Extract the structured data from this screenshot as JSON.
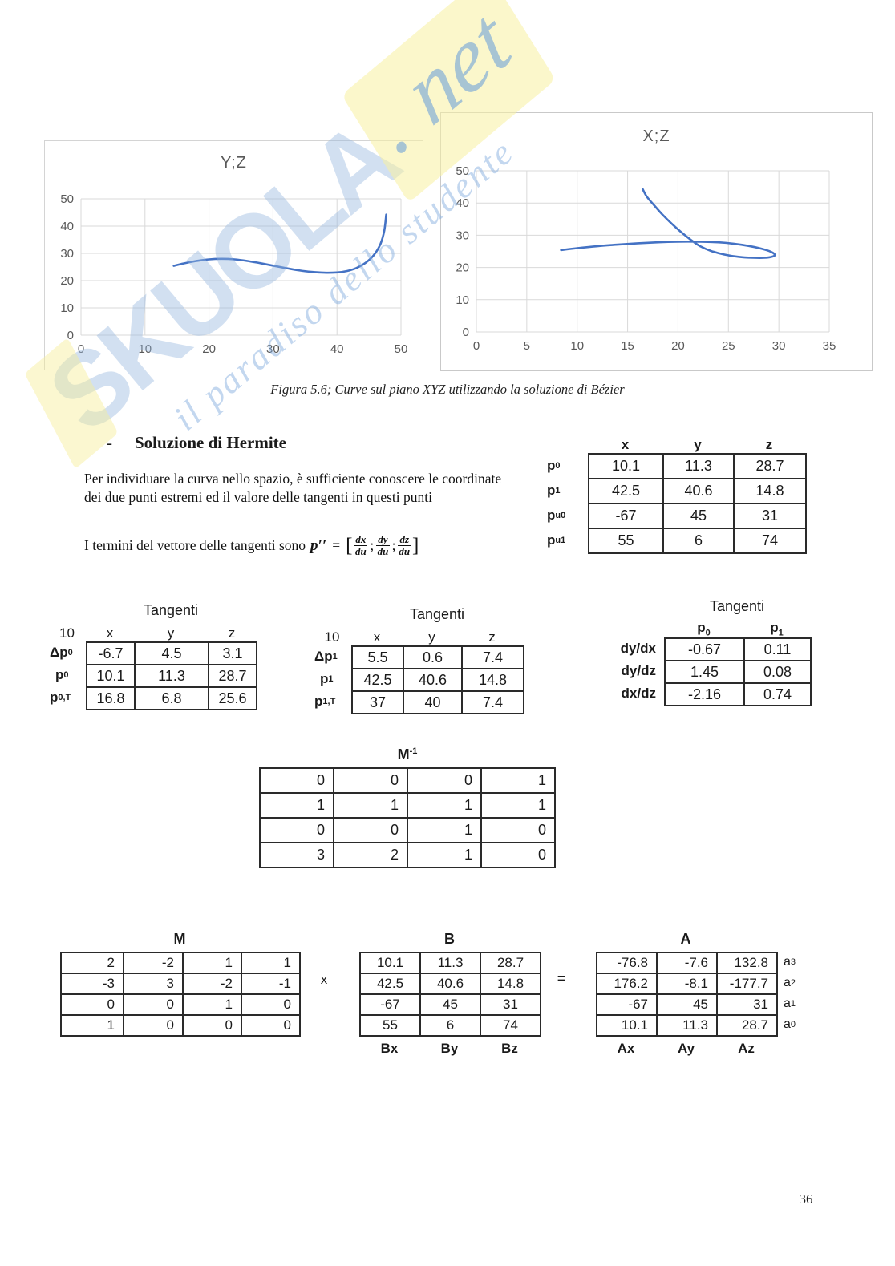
{
  "watermark": {
    "brand": "SKUOLA",
    "tld": ". net",
    "tagline": "il paradiso dello studente"
  },
  "caption": "Figura 5.6; Curve sul piano XYZ utilizzando la soluzione di Bézier",
  "page_number": "36",
  "section": {
    "bullet": "-",
    "title": "Soluzione di Hermite",
    "paragraph": "Per individuare la curva nello spazio, è sufficiente conoscere le coordinate dei due punti estremi ed il valore delle tangenti in questi punti",
    "formula_intro": "I termini del vettore delle tangenti sono",
    "formula": {
      "p": "p",
      "primes": "′′",
      "equals": "=",
      "open": "[",
      "close": "]",
      "sep": ";",
      "fracs": [
        {
          "num": "dx",
          "den": "du"
        },
        {
          "num": "dy",
          "den": "du"
        },
        {
          "num": "dz",
          "den": "du"
        }
      ]
    }
  },
  "chart_data": [
    {
      "type": "line",
      "title": "Y;Z",
      "xlabel": "",
      "ylabel": "",
      "xlim": [
        0,
        50
      ],
      "ylim": [
        0,
        50
      ],
      "x_ticks": [
        0,
        10,
        20,
        30,
        40,
        50
      ],
      "y_ticks": [
        0,
        10,
        20,
        30,
        40,
        50
      ],
      "grid": true,
      "legend": false,
      "line_color": "#4472C4",
      "points": [
        [
          14.5,
          25.4
        ],
        [
          16,
          26.3
        ],
        [
          18,
          27.2
        ],
        [
          20,
          27.8
        ],
        [
          22,
          28.0
        ],
        [
          24,
          27.8
        ],
        [
          26,
          27.2
        ],
        [
          28,
          26.4
        ],
        [
          30,
          25.5
        ],
        [
          32,
          24.6
        ],
        [
          34,
          23.8
        ],
        [
          36,
          23.2
        ],
        [
          38,
          22.9
        ],
        [
          40,
          23.0
        ],
        [
          41.5,
          23.5
        ],
        [
          43,
          24.6
        ],
        [
          44.5,
          26.6
        ],
        [
          45.8,
          29.5
        ],
        [
          46.8,
          33.5
        ],
        [
          47.4,
          38.5
        ],
        [
          47.7,
          44.2
        ]
      ]
    },
    {
      "type": "line",
      "title": "X;Z",
      "xlabel": "",
      "ylabel": "",
      "xlim": [
        0,
        35
      ],
      "ylim": [
        0,
        50
      ],
      "x_ticks": [
        0,
        5,
        10,
        15,
        20,
        25,
        30,
        35
      ],
      "y_ticks": [
        0,
        10,
        20,
        30,
        40,
        50
      ],
      "grid": true,
      "legend": false,
      "line_color": "#4472C4",
      "points": [
        [
          8.4,
          25.4
        ],
        [
          10,
          26.0
        ],
        [
          12,
          26.6
        ],
        [
          14,
          27.1
        ],
        [
          16,
          27.5
        ],
        [
          18,
          27.8
        ],
        [
          20,
          28.0
        ],
        [
          22,
          28.0
        ],
        [
          24,
          27.8
        ],
        [
          25.5,
          27.4
        ],
        [
          27,
          26.7
        ],
        [
          28.3,
          25.8
        ],
        [
          29.2,
          24.9
        ],
        [
          29.6,
          24.0
        ],
        [
          29.4,
          23.4
        ],
        [
          28.6,
          23.0
        ],
        [
          27.4,
          23.0
        ],
        [
          26,
          23.3
        ],
        [
          24.6,
          24.0
        ],
        [
          23.3,
          25.1
        ],
        [
          22.2,
          26.6
        ],
        [
          21.3,
          28.5
        ],
        [
          20.3,
          31.0
        ],
        [
          19.3,
          33.8
        ],
        [
          18.4,
          36.6
        ],
        [
          17.6,
          39.4
        ],
        [
          16.9,
          42.0
        ],
        [
          16.5,
          44.3
        ]
      ]
    }
  ],
  "hermite_table": {
    "headers": [
      "x",
      "y",
      "z"
    ],
    "row_labels": [
      {
        "base": "p",
        "sup": "",
        "sub": "0"
      },
      {
        "base": "p",
        "sup": "",
        "sub": "1"
      },
      {
        "base": "p",
        "sup": "u",
        "sub": "0"
      },
      {
        "base": "p",
        "sup": "u",
        "sub": "1"
      }
    ],
    "rows": [
      [
        "10.1",
        "11.3",
        "28.7"
      ],
      [
        "42.5",
        "40.6",
        "14.8"
      ],
      [
        "-67",
        "45",
        "31"
      ],
      [
        "55",
        "6",
        "74"
      ]
    ]
  },
  "tangenti1": {
    "title": "Tangenti",
    "corner": "10",
    "headers": [
      "x",
      "y",
      "z"
    ],
    "row_labels": [
      {
        "base": "Δp",
        "sub": "0"
      },
      {
        "base": "p",
        "sub": "0"
      },
      {
        "base": "p",
        "sub": "0,T"
      }
    ],
    "rows": [
      [
        "-6.7",
        "4.5",
        "3.1"
      ],
      [
        "10.1",
        "11.3",
        "28.7"
      ],
      [
        "16.8",
        "6.8",
        "25.6"
      ]
    ]
  },
  "tangenti2": {
    "title": "Tangenti",
    "corner": "10",
    "headers": [
      "x",
      "y",
      "z"
    ],
    "row_labels": [
      {
        "base": "Δp",
        "sub": "1"
      },
      {
        "base": "p",
        "sub": "1"
      },
      {
        "base": "p",
        "sub": "1,T"
      }
    ],
    "rows": [
      [
        "5.5",
        "0.6",
        "7.4"
      ],
      [
        "42.5",
        "40.6",
        "14.8"
      ],
      [
        "37",
        "40",
        "7.4"
      ]
    ]
  },
  "tangenti3": {
    "title": "Tangenti",
    "headers": [
      {
        "base": "p",
        "sub": "0"
      },
      {
        "base": "p",
        "sub": "1"
      }
    ],
    "row_labels": [
      "dy/dx",
      "dy/dz",
      "dx/dz"
    ],
    "rows": [
      [
        "-0.67",
        "0.11"
      ],
      [
        "1.45",
        "0.08"
      ],
      [
        "-2.16",
        "0.74"
      ]
    ]
  },
  "minv": {
    "title_base": "M",
    "title_sup": "-1",
    "rows": [
      [
        "0",
        "0",
        "0",
        "1"
      ],
      [
        "1",
        "1",
        "1",
        "1"
      ],
      [
        "0",
        "0",
        "1",
        "0"
      ],
      [
        "3",
        "2",
        "1",
        "0"
      ]
    ]
  },
  "m_matrix": {
    "title": "M",
    "rows": [
      [
        "2",
        "-2",
        "1",
        "1"
      ],
      [
        "-3",
        "3",
        "-2",
        "-1"
      ],
      [
        "0",
        "0",
        "1",
        "0"
      ],
      [
        "1",
        "0",
        "0",
        "0"
      ]
    ]
  },
  "times_sign": "x",
  "equals_sign": "=",
  "b_matrix": {
    "title": "B",
    "rows": [
      [
        "10.1",
        "11.3",
        "28.7"
      ],
      [
        "42.5",
        "40.6",
        "14.8"
      ],
      [
        "-67",
        "45",
        "31"
      ],
      [
        "55",
        "6",
        "74"
      ]
    ],
    "footers": [
      "Bx",
      "By",
      "Bz"
    ]
  },
  "a_matrix": {
    "title": "A",
    "rows": [
      [
        "-76.8",
        "-7.6",
        "132.8"
      ],
      [
        "176.2",
        "-8.1",
        "-177.7"
      ],
      [
        "-67",
        "45",
        "31"
      ],
      [
        "10.1",
        "11.3",
        "28.7"
      ]
    ],
    "side_labels": [
      {
        "base": "a",
        "sub": "3"
      },
      {
        "base": "a",
        "sub": "2"
      },
      {
        "base": "a",
        "sub": "1"
      },
      {
        "base": "a",
        "sub": "0"
      }
    ],
    "footers": [
      "Ax",
      "Ay",
      "Az"
    ]
  }
}
